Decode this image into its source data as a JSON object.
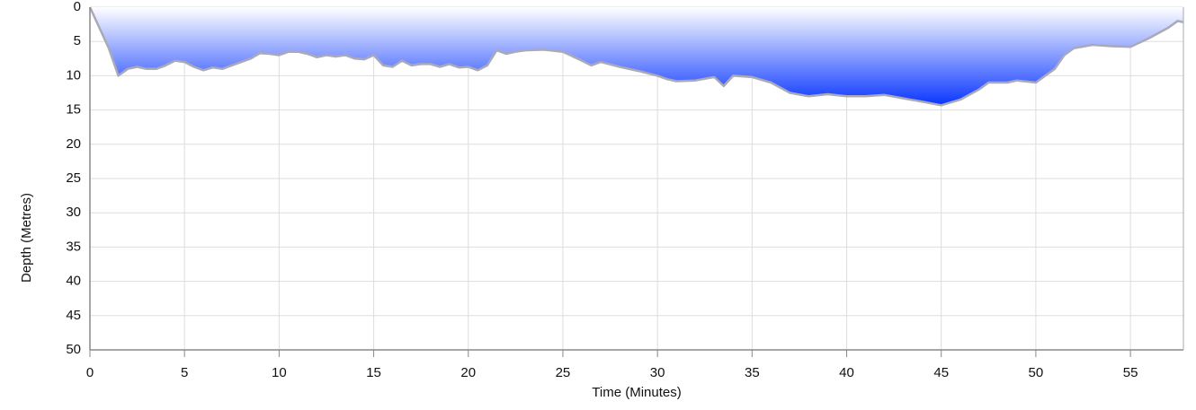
{
  "chart_data": {
    "type": "area",
    "x_label": "Time (Minutes)",
    "y_label": "Depth (Metres)",
    "x": [
      0,
      0.5,
      1,
      1.5,
      2,
      2.5,
      3,
      3.5,
      4,
      4.5,
      5,
      5.5,
      6,
      6.5,
      7,
      7.5,
      8,
      8.5,
      9,
      9.5,
      10,
      10.5,
      11,
      11.5,
      12,
      12.5,
      13,
      13.5,
      14,
      14.5,
      15,
      15.5,
      16,
      16.5,
      17,
      17.5,
      18,
      18.5,
      19,
      19.5,
      20,
      20.5,
      21,
      21.5,
      22,
      22.5,
      23,
      24,
      25,
      26,
      26.5,
      27,
      28,
      29,
      30,
      30.5,
      31,
      32,
      33,
      33.5,
      34,
      35,
      36,
      37,
      38,
      39,
      40,
      41,
      42,
      43,
      44,
      45,
      46,
      47,
      47.5,
      48.5,
      49,
      50,
      51,
      51.5,
      52,
      53,
      54,
      55,
      56,
      57,
      57.5,
      57.8
    ],
    "values": [
      0,
      3,
      6,
      10,
      9,
      8.7,
      9,
      9,
      8.5,
      7.8,
      8,
      8.7,
      9.2,
      8.8,
      9,
      8.5,
      8,
      7.5,
      6.7,
      6.8,
      7,
      6.5,
      6.5,
      6.8,
      7.3,
      7,
      7.2,
      7,
      7.5,
      7.6,
      7,
      8.5,
      8.7,
      7.8,
      8.5,
      8.3,
      8.3,
      8.7,
      8.3,
      8.8,
      8.7,
      9.2,
      8.5,
      6.3,
      6.8,
      6.5,
      6.3,
      6.2,
      6.5,
      7.8,
      8.5,
      8,
      8.7,
      9.3,
      10,
      10.5,
      10.8,
      10.7,
      10.2,
      11.5,
      10,
      10.2,
      11,
      12.5,
      13,
      12.7,
      13,
      13,
      12.8,
      13.3,
      13.8,
      14.3,
      13.5,
      12,
      11,
      11,
      10.7,
      11,
      9,
      7,
      6,
      5.5,
      5.7,
      5.8,
      4.5,
      3,
      2,
      2.2
    ],
    "color": "#0a36ff",
    "line_color": "#a9a9b8",
    "xlim": [
      0,
      57.8
    ],
    "ylim": [
      0,
      50
    ],
    "inverted": true,
    "grid": true,
    "xticks": [
      0,
      5,
      10,
      15,
      20,
      25,
      30,
      35,
      40,
      45,
      50,
      55
    ],
    "yticks": [
      0,
      5,
      10,
      15,
      20,
      25,
      30,
      35,
      40,
      45,
      50
    ]
  }
}
